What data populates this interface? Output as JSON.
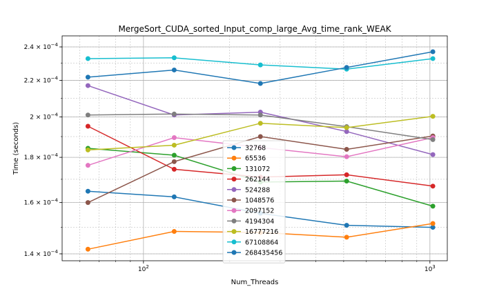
{
  "chart_data": {
    "type": "line",
    "title": "MergeSort_CUDA_sorted_Input_comp_large_Avg_time_rank_WEAK",
    "xlabel": "Num_Threads",
    "ylabel": "Time (seconds)",
    "x_scale": "log",
    "y_scale": "log",
    "xlim": [
      52,
      1150
    ],
    "ylim": [
      0.0001375,
      0.000247
    ],
    "x": [
      64,
      128,
      256,
      512,
      1024
    ],
    "x_ticks": [
      {
        "value": 100,
        "base": "10",
        "exp": "2"
      },
      {
        "value": 1000,
        "base": "10",
        "exp": "3"
      }
    ],
    "y_ticks": [
      {
        "value": 0.00014,
        "mant": "1.4 × 10",
        "exp": "−4"
      },
      {
        "value": 0.00016,
        "mant": "1.6 × 10",
        "exp": "−4"
      },
      {
        "value": 0.00018,
        "mant": "1.8 × 10",
        "exp": "−4"
      },
      {
        "value": 0.0002,
        "mant": "2 × 10",
        "exp": "−4"
      },
      {
        "value": 0.00022,
        "mant": "2.2 × 10",
        "exp": "−4"
      },
      {
        "value": 0.00024,
        "mant": "2.4 × 10",
        "exp": "−4"
      }
    ],
    "grid": true,
    "legend_position": "center",
    "series": [
      {
        "name": "32768",
        "color": "#1f77b4",
        "values": [
          0.0001648,
          0.0001624,
          0.0001556,
          0.0001508,
          0.00015
        ]
      },
      {
        "name": "65536",
        "color": "#ff7f0e",
        "values": [
          0.0001417,
          0.0001484,
          0.000148,
          0.0001462,
          0.0001515
        ]
      },
      {
        "name": "131072",
        "color": "#2ca02c",
        "values": [
          0.0001843,
          0.000181,
          0.0001688,
          0.0001692,
          0.0001585
        ]
      },
      {
        "name": "262144",
        "color": "#d62728",
        "values": [
          0.0001952,
          0.0001745,
          0.000171,
          0.000172,
          0.000167
        ]
      },
      {
        "name": "524288",
        "color": "#9467bd",
        "values": [
          0.000217,
          0.000201,
          0.0002025,
          0.0001925,
          0.0001813
        ]
      },
      {
        "name": "1048576",
        "color": "#8c564b",
        "values": [
          0.00016,
          0.000178,
          0.00019,
          0.0001838,
          0.0001903
        ]
      },
      {
        "name": "2097152",
        "color": "#e377c2",
        "values": [
          0.0001763,
          0.0001895,
          0.0001847,
          0.0001803,
          0.0001895
        ]
      },
      {
        "name": "4194304",
        "color": "#7f7f7f",
        "values": [
          0.000201,
          0.0002015,
          0.000201,
          0.000195,
          0.0001885
        ]
      },
      {
        "name": "16777216",
        "color": "#bcbd22",
        "values": [
          0.0001835,
          0.0001858,
          0.0001967,
          0.0001945,
          0.0002003
        ]
      },
      {
        "name": "67108864",
        "color": "#17becf",
        "values": [
          0.0002328,
          0.0002333,
          0.000229,
          0.0002265,
          0.0002328
        ]
      },
      {
        "name": "268435456",
        "color": "#1f77b4",
        "values": [
          0.0002218,
          0.000226,
          0.0002182,
          0.0002275,
          0.000237
        ]
      }
    ]
  }
}
